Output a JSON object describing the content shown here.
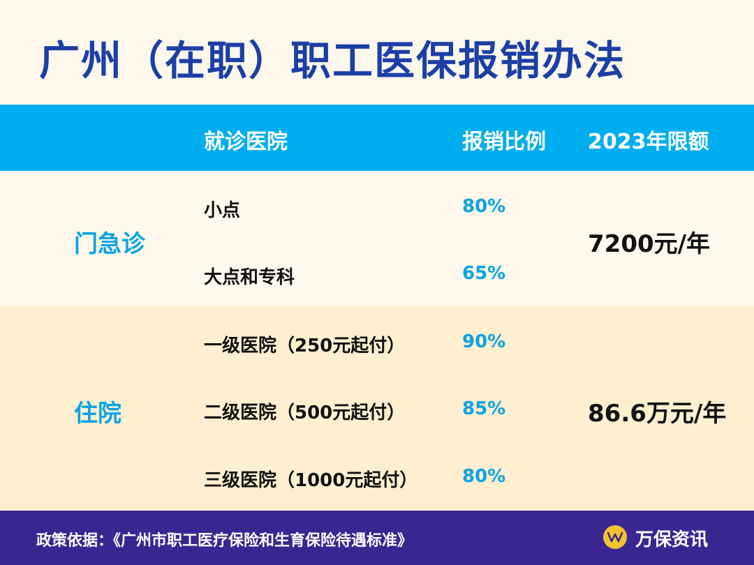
{
  "title": "广州（在职）职工医保报销办法",
  "header": {
    "hospital": "就诊医院",
    "ratio": "报销比例",
    "limit": "2023年限额"
  },
  "groups": [
    {
      "label": "门急诊",
      "limit": "7200元/年",
      "rows": [
        {
          "hospital": "小点",
          "ratio": "80%"
        },
        {
          "hospital": "大点和专科",
          "ratio": "65%"
        }
      ]
    },
    {
      "label": "住院",
      "limit": "86.6万元/年",
      "rows": [
        {
          "hospital": "一级医院（250元起付）",
          "ratio": "90%"
        },
        {
          "hospital": "二级医院（500元起付）",
          "ratio": "85%"
        },
        {
          "hospital": "三级医院（1000元起付）",
          "ratio": "80%"
        }
      ]
    }
  ],
  "footer": {
    "basis": "政策依据：《广州市职工医疗保险和生育保险待遇标准》",
    "brand": "万保资讯",
    "logo_icon": "w-logo-icon"
  },
  "colors": {
    "title": "#1c3fa6",
    "header_bg": "#00aeef",
    "accent": "#0ba3e4",
    "band_light": "#fdf7ec",
    "band_warm": "#fdefd0",
    "footer_bg": "#3a2691",
    "logo": "#f2c232"
  }
}
